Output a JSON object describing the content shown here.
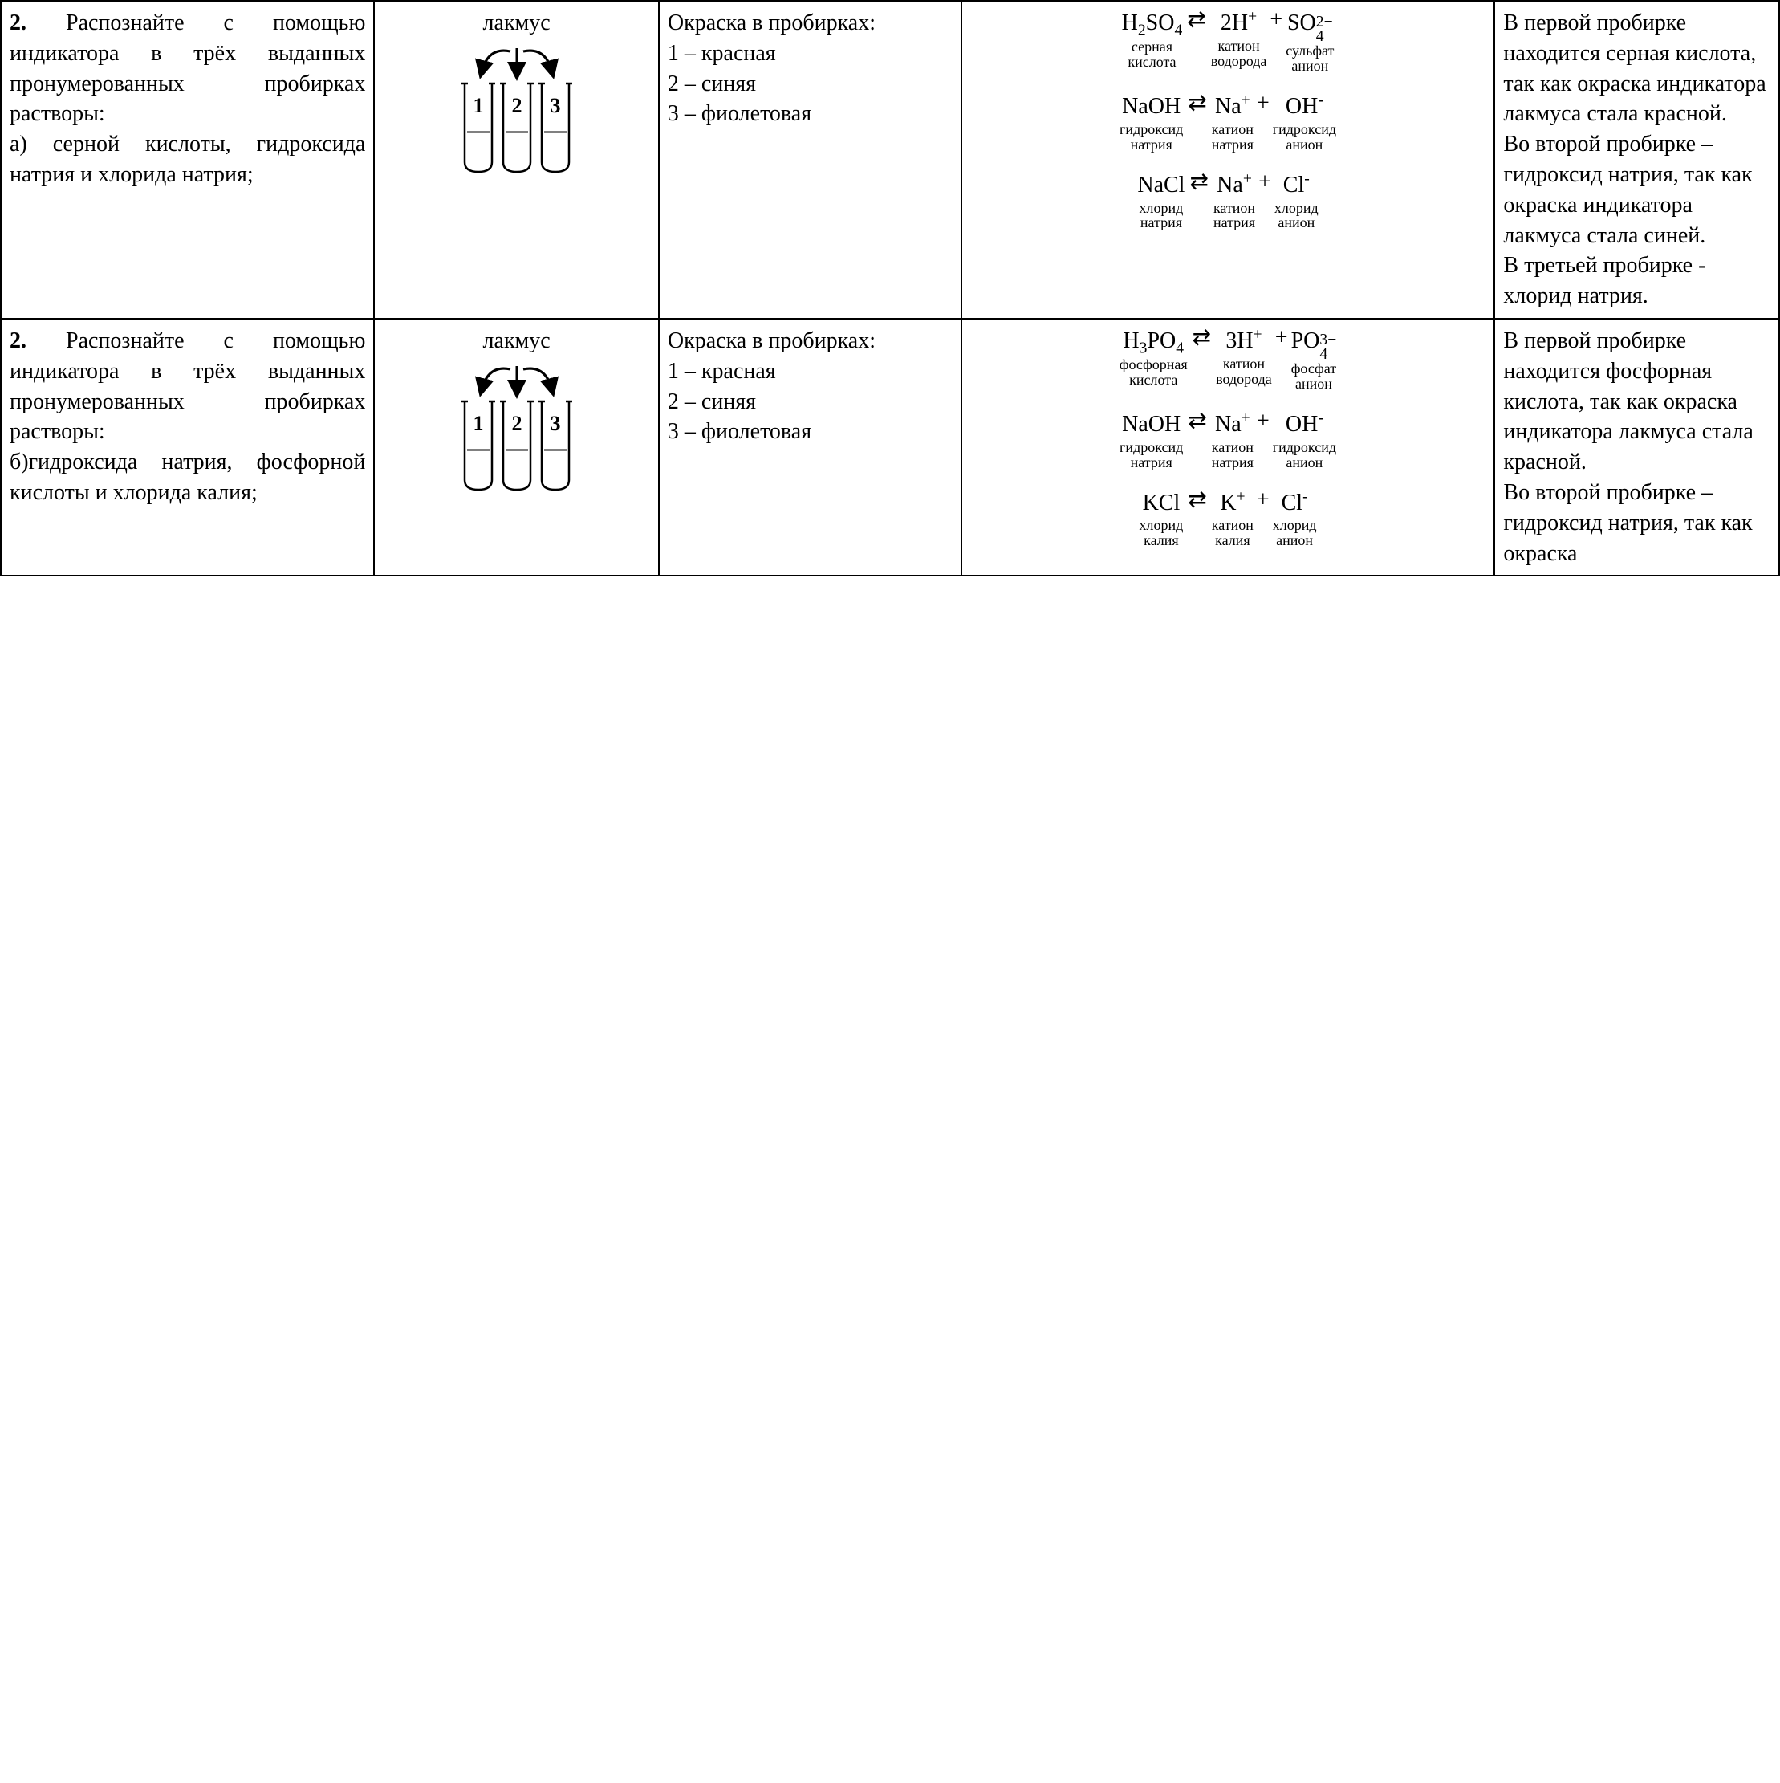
{
  "table": {
    "border_color": "#000000",
    "background_color": "#ffffff",
    "text_color": "#000000",
    "font_family": "Times New Roman",
    "base_font_size_pt": 21,
    "label_font_size_pt": 14,
    "column_widths_pct": [
      21,
      16,
      17,
      30,
      16
    ],
    "rows": [
      {
        "task": {
          "num": "2.",
          "body": "Распознайте с помощью индикатора в трёх выданных пронумерованных пробирках растворы:",
          "sub": "а) серной кислоты, гидроксида натрия и хлорида натрия;"
        },
        "indicator": {
          "name": "лакмус",
          "tubes": [
            "1",
            "2",
            "3"
          ]
        },
        "observation": {
          "head": "Окраска в пробирках:",
          "l1": "1 – красная",
          "l2": "2 – синяя",
          "l3": "3 – фиолетовая"
        },
        "equations": [
          {
            "lhs": {
              "formula_html": "H<sub>2</sub>SO<sub>4</sub>",
              "label": "серная\nкислота"
            },
            "rhs": [
              {
                "formula_html": "2H<sup>+</sup>",
                "label": "катион\nводорода"
              },
              {
                "formula_html": "SO<span class='supsub'><span>2−</span><span>4</span></span>",
                "label": "сульфат\nанион"
              }
            ]
          },
          {
            "lhs": {
              "formula_html": "NaOH",
              "label": "гидроксид\nнатрия"
            },
            "rhs": [
              {
                "formula_html": "Na<sup>+</sup>",
                "label": "катион\nнатрия"
              },
              {
                "formula_html": "OH<sup>-</sup>",
                "label": "гидроксид\nанион"
              }
            ]
          },
          {
            "lhs": {
              "formula_html": "NaCl",
              "label": "хлорид\nнатрия"
            },
            "rhs": [
              {
                "formula_html": "Na<sup>+</sup>",
                "label": "катион\nнатрия"
              },
              {
                "formula_html": "Cl<sup>-</sup>",
                "label": "хлорид\nанион"
              }
            ]
          }
        ],
        "conclusion": "В первой пробирке находится серная кислота, так как окраска индикатора лакмуса стала красной.\nВо второй пробирке – гидроксид натрия, так как окраска индикатора лакмуса стала синей.\nВ третьей пробирке - хлорид натрия."
      },
      {
        "task": {
          "num": "2.",
          "body": "Распознайте с помощью индикатора в трёх выданных пронумерованных пробирках растворы:",
          "sub": "б)гидроксида натрия, фосфорной кислоты и хлорида калия;"
        },
        "indicator": {
          "name": "лакмус",
          "tubes": [
            "1",
            "2",
            "3"
          ]
        },
        "observation": {
          "head": "Окраска в пробирках:",
          "l1": "1 – красная",
          "l2": "2 – синяя",
          "l3": "3 – фиолетовая"
        },
        "equations": [
          {
            "lhs": {
              "formula_html": "H<sub>3</sub>PO<sub>4</sub>",
              "label": "фосфорная\nкислота"
            },
            "rhs": [
              {
                "formula_html": "3H<sup>+</sup>",
                "label": "катион\nводорода"
              },
              {
                "formula_html": "PO<span class='supsub'><span>3−</span><span>4</span></span>",
                "label": "фосфат\nанион"
              }
            ]
          },
          {
            "lhs": {
              "formula_html": "NaOH",
              "label": "гидроксид\nнатрия"
            },
            "rhs": [
              {
                "formula_html": "Na<sup>+</sup>",
                "label": "катион\nнатрия"
              },
              {
                "formula_html": "OH<sup>-</sup>",
                "label": "гидроксид\nанион"
              }
            ]
          },
          {
            "lhs": {
              "formula_html": "KCl",
              "label": "хлорид\nкалия"
            },
            "rhs": [
              {
                "formula_html": "K<sup>+</sup>",
                "label": "катион\nкалия"
              },
              {
                "formula_html": "Cl<sup>-</sup>",
                "label": "хлорид\nанион"
              }
            ]
          }
        ],
        "conclusion": "В первой пробирке находится фосфорная кислота, так как окраска индикатора лакмуса стала красной.\nВо второй пробирке – гидроксид натрия, так как окраска"
      }
    ]
  },
  "equilibrium_arrow": "⇄",
  "tube_svg": {
    "stroke": "#000000",
    "fill": "#ffffff",
    "tube_width": 34,
    "tube_height": 110,
    "gap": 14,
    "arrow_stroke_width": 3,
    "label_font_weight": "bold"
  }
}
